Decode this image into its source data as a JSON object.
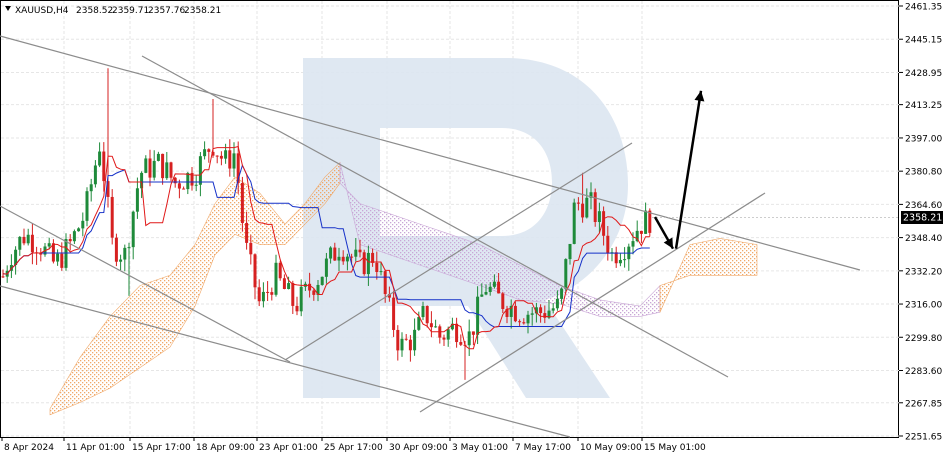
{
  "header": {
    "symbol_label": "XAUUSD,H4",
    "ohlc": [
      "2358.52",
      "2359.71",
      "2357.76",
      "2358.21"
    ]
  },
  "current_price": "2358.21",
  "colors": {
    "bull": "#1e8a3a",
    "bear": "#d62020",
    "tenkan": "#e01818",
    "kijun": "#1530c8",
    "cloud_up": "#f0a868",
    "cloud_down": "#c9a6d6",
    "trendline": "#8c8c8c",
    "arrow": "#000000",
    "watermark": "#dce6f1"
  },
  "chart_data": {
    "type": "candlestick",
    "symbol": "XAUUSD",
    "timeframe": "H4",
    "y_ticks": [
      "2461.35",
      "2445.15",
      "2428.95",
      "2413.25",
      "2397.00",
      "2380.80",
      "2364.60",
      "2348.40",
      "2332.20",
      "2316.00",
      "2299.80",
      "2283.60",
      "2267.85",
      "2251.65"
    ],
    "ylim": [
      2251.65,
      2461.35
    ],
    "x_ticks": [
      "8 Apr 2024",
      "11 Apr 01:00",
      "15 Apr 17:00",
      "18 Apr 09:00",
      "23 Apr 01:00",
      "25 Apr 17:00",
      "30 Apr 09:00",
      "3 May 01:00",
      "7 May 17:00",
      "10 May 09:00",
      "15 May 01:00"
    ],
    "grid": true,
    "legend": "none",
    "indicator": "Ichimoku Kinko Hyo",
    "forecast": {
      "down_to": 2343,
      "up_to": 2420
    }
  }
}
